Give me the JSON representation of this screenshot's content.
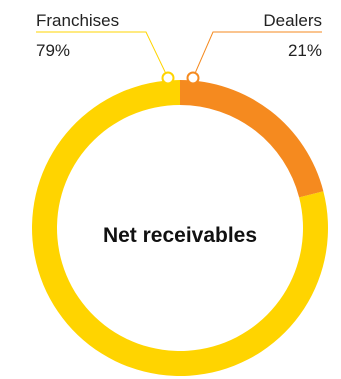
{
  "chart_data": {
    "type": "pie",
    "variant": "donut",
    "center_label": "Net receivables",
    "slices": [
      {
        "label": "Franchises",
        "value": 79,
        "display": "79%",
        "color": "#FFD400"
      },
      {
        "label": "Dealers",
        "value": 21,
        "display": "21%",
        "color": "#F58A1F"
      }
    ],
    "legend": "callouts-top",
    "start_angle": "12 o'clock",
    "direction": "clockwise"
  },
  "colors": {
    "callout_line": "#FFD400",
    "callout_line_dealers": "#F58A1F",
    "text": "#222222"
  }
}
